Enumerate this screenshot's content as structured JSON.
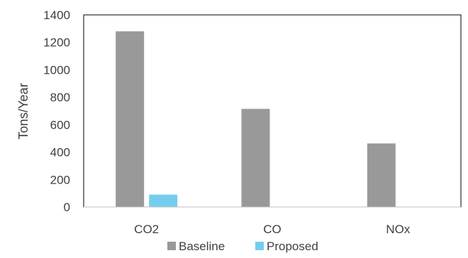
{
  "chart_data": {
    "type": "bar",
    "title": "",
    "xlabel": "",
    "ylabel": "Tons/Year",
    "categories": [
      "CO2",
      "CO",
      "NOx"
    ],
    "series": [
      {
        "name": "Baseline",
        "values": [
          1280,
          715,
          463
        ],
        "color": "#999999"
      },
      {
        "name": "Proposed",
        "values": [
          90,
          2,
          2
        ],
        "color": "#75cdee"
      }
    ],
    "ylim": [
      0,
      1400
    ],
    "yticks": [
      0,
      200,
      400,
      600,
      800,
      1000,
      1200,
      1400
    ],
    "grid": false,
    "legend_position": "bottom"
  }
}
